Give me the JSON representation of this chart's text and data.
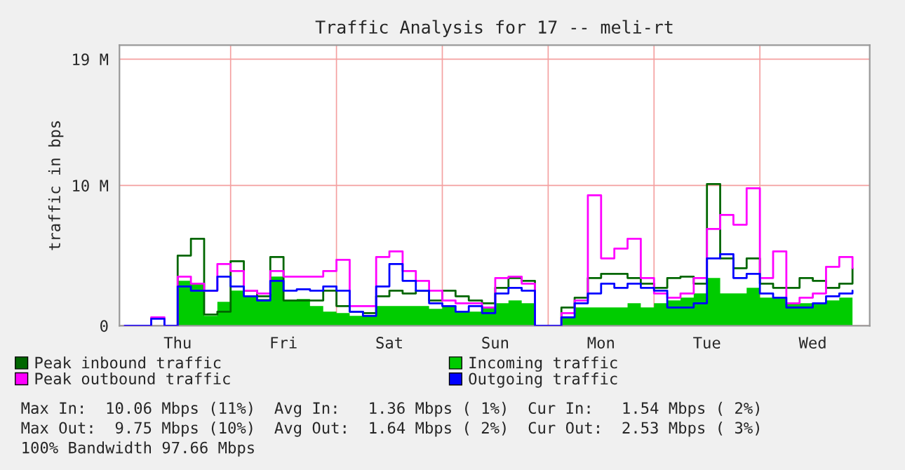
{
  "chart_data": {
    "type": "step",
    "title": "Traffic Analysis for 17 -- meli-rt",
    "ylabel": "traffic in bps",
    "categories": [
      null,
      null,
      null,
      null,
      "Thu",
      null,
      null,
      null,
      null,
      null,
      null,
      null,
      "Fri",
      null,
      null,
      null,
      null,
      null,
      null,
      null,
      "Sat",
      null,
      null,
      null,
      null,
      null,
      null,
      null,
      "Sun",
      null,
      null,
      null,
      null,
      null,
      null,
      null,
      "Mon",
      null,
      null,
      null,
      null,
      null,
      null,
      null,
      "Tue",
      null,
      null,
      null,
      null,
      null,
      null,
      null,
      "Wed",
      null,
      null,
      null
    ],
    "series": [
      {
        "name": "Peak inbound traffic",
        "color": "#006600",
        "values": [
          null,
          null,
          null,
          0,
          5.0,
          6.2,
          0.8,
          1.0,
          4.6,
          2.5,
          2.1,
          4.9,
          1.8,
          1.8,
          1.8,
          2.5,
          1.4,
          1.0,
          0.9,
          2.1,
          2.5,
          2.3,
          2.5,
          1.8,
          2.5,
          2.1,
          1.8,
          1.6,
          2.7,
          3.4,
          3.2,
          0,
          0,
          1.3,
          2.0,
          3.4,
          3.7,
          3.7,
          3.4,
          3.0,
          2.7,
          3.4,
          3.5,
          3.0,
          10.1,
          4.8,
          4.1,
          4.8,
          3.0,
          2.7,
          2.7,
          3.4,
          3.2,
          2.7,
          3.0,
          4.1
        ]
      },
      {
        "name": "Incoming traffic",
        "color": "#00cc00",
        "type": "area",
        "values": [
          0,
          0,
          0,
          0,
          3.2,
          3.0,
          0.7,
          1.7,
          2.5,
          2.1,
          1.9,
          3.5,
          1.8,
          1.9,
          1.4,
          1.0,
          0.9,
          0.7,
          0.7,
          1.4,
          1.4,
          1.4,
          1.4,
          1.2,
          1.4,
          1.0,
          1.0,
          1.3,
          1.6,
          1.8,
          1.6,
          0,
          0,
          0.6,
          1.3,
          1.3,
          1.3,
          1.3,
          1.6,
          1.3,
          1.6,
          1.8,
          2.0,
          2.3,
          3.4,
          2.3,
          2.3,
          2.7,
          2.0,
          2.0,
          1.6,
          1.6,
          1.6,
          1.8,
          2.0,
          2.0
        ]
      },
      {
        "name": "Peak outbound traffic",
        "color": "#ff00ff",
        "values": [
          0,
          0,
          0.6,
          0,
          3.5,
          3.0,
          2.5,
          4.4,
          3.9,
          2.5,
          2.3,
          3.9,
          3.5,
          3.5,
          3.5,
          3.9,
          4.7,
          1.4,
          1.4,
          4.9,
          5.3,
          3.9,
          3.2,
          2.5,
          1.8,
          1.6,
          1.6,
          1.3,
          3.4,
          3.5,
          3.0,
          0,
          0,
          0.9,
          1.8,
          9.3,
          4.8,
          5.5,
          6.2,
          3.4,
          2.3,
          2.0,
          2.3,
          3.4,
          6.9,
          7.9,
          7.2,
          9.8,
          3.4,
          5.3,
          1.6,
          2.0,
          2.3,
          4.2,
          4.9,
          4.1
        ]
      },
      {
        "name": "Outgoing traffic",
        "color": "#0000ff",
        "values": [
          0,
          0,
          0.5,
          0,
          2.8,
          2.5,
          2.5,
          3.5,
          2.8,
          2.1,
          1.8,
          3.2,
          2.5,
          2.6,
          2.5,
          2.8,
          2.5,
          1.0,
          0.7,
          2.8,
          4.4,
          3.2,
          2.5,
          1.6,
          1.4,
          1.0,
          1.4,
          0.9,
          2.3,
          2.7,
          2.5,
          0,
          0,
          0.6,
          1.6,
          2.3,
          3.0,
          2.7,
          3.0,
          2.7,
          2.5,
          1.3,
          1.3,
          1.6,
          4.8,
          5.1,
          3.4,
          3.7,
          2.3,
          2.0,
          1.3,
          1.3,
          1.6,
          2.1,
          2.3,
          2.5
        ]
      }
    ],
    "ylim": [
      0,
      20
    ],
    "yticks": [
      0,
      {
        "value": 10,
        "label": "10 M"
      },
      {
        "value": 19,
        "label": "19 M"
      }
    ],
    "grid": true,
    "legend": "bottom",
    "annotations": [
      "Max In:  10.06 Mbps (11%)  Avg In:   1.36 Mbps ( 1%)  Cur In:   1.54 Mbps ( 2%)",
      "Max Out:  9.75 Mbps (10%)  Avg Out:  1.64 Mbps ( 2%)  Cur Out:  2.53 Mbps ( 3%)",
      "100% Bandwidth 97.66 Mbps"
    ]
  }
}
